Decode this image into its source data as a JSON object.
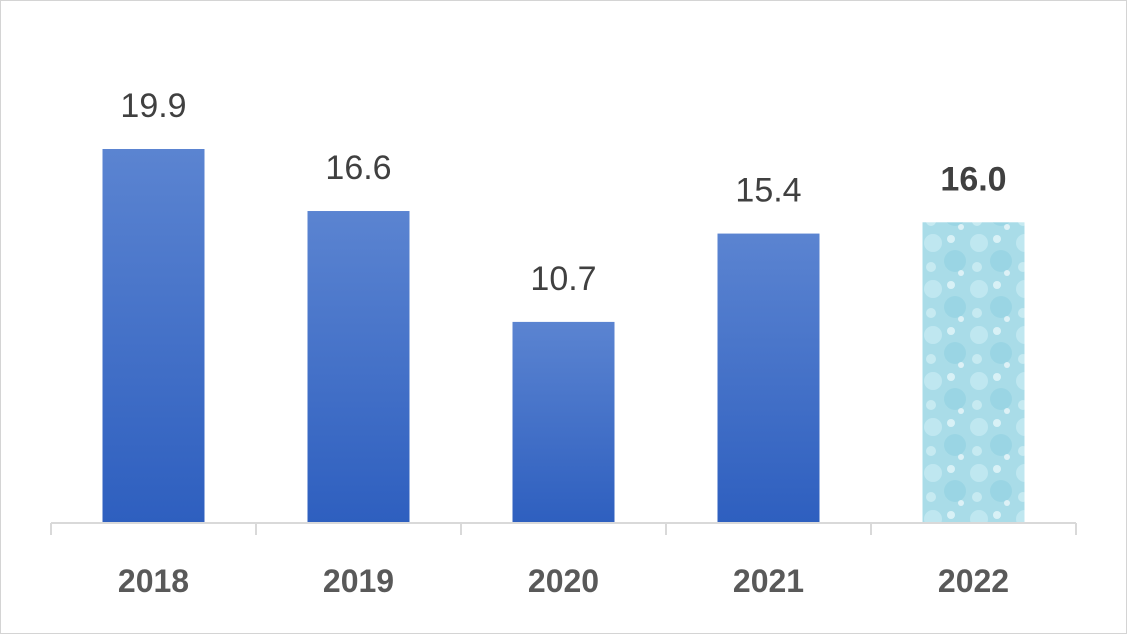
{
  "chart_data": {
    "type": "bar",
    "title": "",
    "xlabel": "",
    "ylabel": "",
    "categories": [
      "2018",
      "2019",
      "2020",
      "2021",
      "2022"
    ],
    "values": [
      19.9,
      16.6,
      10.7,
      15.4,
      16.0
    ],
    "data_labels": [
      "19.9",
      "16.6",
      "10.7",
      "15.4",
      "16.0"
    ],
    "ylim": [
      0,
      22
    ],
    "grid": false,
    "legend": "none",
    "highlight_category": "2022",
    "colors": {
      "bar": "#4472c4",
      "highlight_bar": "#a9dce8",
      "highlight_label": "#538135",
      "label": "#404040",
      "tick_label": "#595959",
      "axis": "#d9d9d9"
    }
  }
}
